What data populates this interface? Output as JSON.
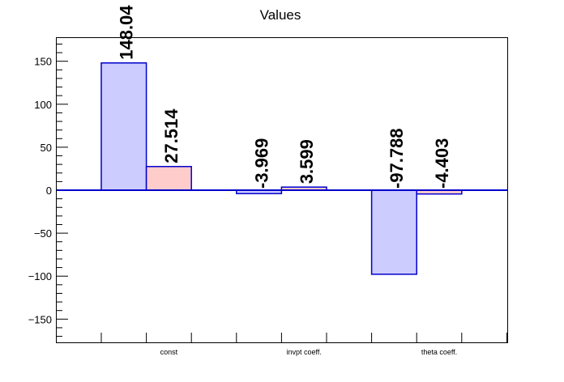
{
  "chart_data": {
    "type": "bar",
    "title": "Values",
    "categories": [
      "const",
      "invpt coeff.",
      "theta coeff."
    ],
    "series": [
      {
        "values": [
          148.04,
          -3.969,
          -97.788
        ],
        "color": "#ccccff",
        "label_text": [
          "148.04",
          "-3.969",
          "-97.788"
        ]
      },
      {
        "values": [
          27.514,
          3.599,
          -4.403
        ],
        "color": "#ffcccc",
        "label_text": [
          "27.514",
          "3.599",
          "-4.403"
        ]
      }
    ],
    "edge_color": "#0000cc",
    "ylim": [
      -177,
      177
    ],
    "yticks": [
      -150,
      -100,
      -50,
      0,
      50,
      100,
      150
    ],
    "ytick_labels": [
      "−150",
      "−100",
      "−50",
      "0",
      "50",
      "100",
      "150"
    ],
    "grid": false,
    "xlabel": "",
    "ylabel": ""
  }
}
